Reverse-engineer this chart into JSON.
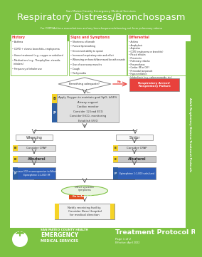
{
  "title_agency": "San Mateo County Emergency Medical Services",
  "title_main": "Respiratory Distress/Bronchospasm",
  "title_sub": "For COPD/Asthma exacerbations and any bronchospasms/wheezing not from pulmonary edema",
  "bg_color": "#7dc242",
  "white": "#ffffff",
  "red_box": "#e8413c",
  "yellow_box": "#f5d327",
  "blue_box": "#2e5fa3",
  "light_gray": "#e8e8e8",
  "mid_gray": "#c8c8c8",
  "dark_blue_box": "#2e5fa3",
  "history_title": "History",
  "history_items": [
    "Asthma",
    "COPD + chronic bronchitis, emphysema",
    "Home treatment (e.g., oxygen or nebulizer)",
    "Medications (e.g., Theophylline, steroids,\n  inhalers)",
    "Frequency of inhaler use"
  ],
  "signs_title": "Signs and Symptoms",
  "signs_items": [
    "Shortness of breath",
    "Pursed lip breathing",
    "Decreased ability to speak",
    "Increased respiratory rate and effort",
    "Wheezing or rhonchi/decreased breath sounds",
    "Use of accessory muscles",
    "Cough",
    "Tachycardia"
  ],
  "diff_title": "Differential",
  "diff_items": [
    "Asthma",
    "Anaphylaxis",
    "Aspiration",
    "COPD (emphysema or bronchitis)",
    "Pleural effusion",
    "Pneumonia",
    "Pulmonary embolus",
    "Pneumothorax",
    "Cardiac (MI or CHF)",
    "Pericardial tamponade",
    "Hyperventilation",
    "Inhaled toxin (e.g., carbon monoxide, etc.)"
  ],
  "diamond_text": "Breathing adequate?",
  "no_label": "No",
  "yes_label": "Yes",
  "red_arrow_box": "Respiratory Arrest/\nRespiratory Failure",
  "step1": "Apply Oxygen to maintain goal SpO₂ ≥94%",
  "step2": "Airway support",
  "step3": "Cardiac monitor",
  "step4": "Consider 12-lead ECG",
  "step5": "Consider EtCO₂ monitoring",
  "step6": "Establish IV/IO",
  "wheezing_label": "Wheezing",
  "stridor_label": "Stridor",
  "consider_cpap_l": "Consider CPAP",
  "consider_cpap_r": "Consider CPAP",
  "albuterol_l": "Albuterol",
  "albuterol_r": "Albuterol",
  "epi_l": "Decrease (O2 or unresponsive to Albuterol)\nEpinephrine 1:1,000 IM",
  "epi_r": "Epinephrine 1:1,000 nebulized",
  "other_sys_text": "Other systemic\nsymptoms",
  "go_to_text": "Go to Anaphylaxis",
  "notify_text": "Notify receiving facility.\nConsider Base Hospital\nfor medical direction",
  "footer_protocol": "Treatment Protocol R03",
  "footer_page": "Page 1 of 2",
  "footer_date": "Effective: April 2022",
  "sidebar_text": "Adult Respiratory Distress Treatment Protocols",
  "B_label": "B",
  "P_label": "P",
  "E_label": "E"
}
